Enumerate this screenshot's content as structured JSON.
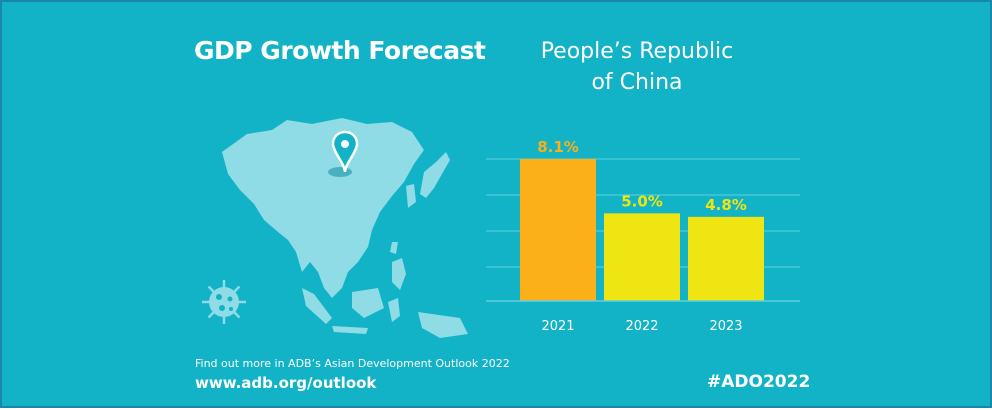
{
  "header": {
    "title": "GDP Growth Forecast",
    "country_line1": "People’s Republic",
    "country_line2": "of China"
  },
  "footer": {
    "note": "Find out more in ADB’s Asian Development Outlook 2022",
    "url": "www.adb.org/outlook",
    "hashtag": "#ADO2022"
  },
  "colors": {
    "background": "#12b3c7",
    "bar_actual": "#fbb01a",
    "bar_forecast": "#eee513",
    "label_actual": "#fbb01a",
    "label_forecast": "#eee513",
    "map": "#8fdbe6"
  },
  "icons": [
    "location-pin-icon",
    "virus-icon",
    "asia-map-icon"
  ],
  "chart_data": {
    "type": "bar",
    "categories": [
      "2021",
      "2022",
      "2023"
    ],
    "values": [
      8.1,
      5.0,
      4.8
    ],
    "data_labels": [
      "8.1%",
      "5.0%",
      "4.8%"
    ],
    "title": "",
    "xlabel": "",
    "ylabel": "",
    "ylim": [
      0,
      10
    ],
    "grid": true,
    "legend": "none"
  }
}
